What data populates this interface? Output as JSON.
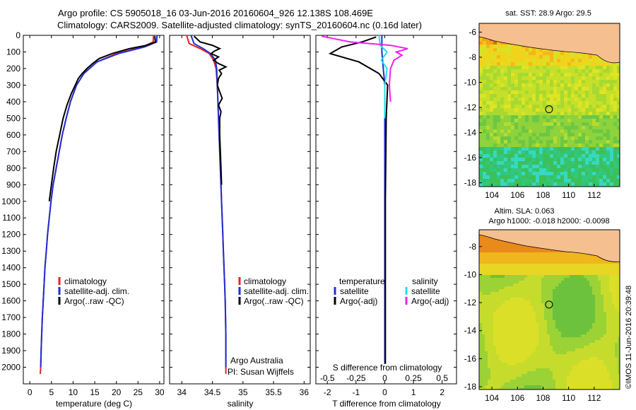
{
  "header": {
    "title_line1": "Argo profile: CS 5905018_16 03-Jun-2016 20160604_926 12.138S 108.469E",
    "title_line2": "Climatology: CARS2009. Satellite-adjusted climatology: synTS_20160604.nc (0.16d later)"
  },
  "watermark": "©IMOS 11-Jun-2016 20:39:48",
  "colors": {
    "climatology": "#e8221c",
    "satellite_clim": "#1f2fd6",
    "argo": "#000000",
    "satellite_sal": "#1fe0e6",
    "argo_sal": "#ee22ee",
    "land": "#f5bf8f"
  },
  "chart_data": [
    {
      "id": "temperature",
      "type": "line",
      "xlabel": "temperature (deg C)",
      "ylabel": "",
      "xlim": [
        -1.5,
        31
      ],
      "ylim": [
        2100,
        0
      ],
      "xticks": [
        0,
        5,
        10,
        15,
        20,
        25,
        30
      ],
      "yticks": [
        0,
        100,
        200,
        300,
        400,
        500,
        600,
        700,
        800,
        900,
        1000,
        1100,
        1200,
        1300,
        1400,
        1500,
        1600,
        1700,
        1800,
        1900,
        2000
      ],
      "legend": [
        "climatology",
        "satellite-adj. clim.",
        "Argo(..raw -QC)"
      ],
      "series": [
        {
          "name": "climatology",
          "color": "#e8221c",
          "x": [
            28.6,
            28.5,
            26,
            20,
            15.5,
            12.5,
            10.8,
            9.4,
            8.4,
            7.5,
            6.8,
            6.1,
            5.4,
            4.9,
            4.5,
            4.1,
            3.8,
            3.5,
            3.3,
            3.1,
            2.9,
            2.75,
            2.62,
            2.52,
            2.42
          ],
          "y": [
            0,
            40,
            70,
            110,
            160,
            230,
            300,
            400,
            500,
            600,
            700,
            800,
            900,
            1000,
            1100,
            1200,
            1300,
            1400,
            1500,
            1600,
            1700,
            1800,
            1900,
            2000,
            2040
          ]
        },
        {
          "name": "satellite-adj. clim.",
          "color": "#1f2fd6",
          "x": [
            29.4,
            29.3,
            26.5,
            20.5,
            15.5,
            12.5,
            10.8,
            9.4,
            8.4,
            7.5,
            6.8,
            6.1,
            5.4,
            4.9,
            4.5,
            4.1,
            3.8,
            3.5,
            3.3,
            3.1,
            2.9,
            2.75,
            2.62,
            2.52
          ],
          "y": [
            0,
            40,
            70,
            110,
            160,
            230,
            300,
            400,
            500,
            600,
            700,
            800,
            900,
            1000,
            1100,
            1200,
            1300,
            1400,
            1500,
            1600,
            1700,
            1800,
            1900,
            2000
          ]
        },
        {
          "name": "Argo(..raw -QC)",
          "color": "#000000",
          "x": [
            28.9,
            29,
            27,
            23,
            19,
            16,
            14.5,
            13.2,
            12.1,
            11.2,
            10.5,
            9.6,
            8.6,
            7.7,
            6.9,
            6.1,
            5.5,
            5.0,
            4.5
          ],
          "y": [
            5,
            40,
            60,
            80,
            110,
            140,
            170,
            200,
            230,
            260,
            300,
            350,
            420,
            500,
            600,
            700,
            800,
            900,
            1000
          ]
        }
      ]
    },
    {
      "id": "salinity",
      "type": "line",
      "xlabel": "salinity",
      "ylabel": "",
      "xlim": [
        33.8,
        36.1
      ],
      "ylim": [
        2100,
        0
      ],
      "xticks": [
        34,
        34.5,
        35,
        35.5,
        36
      ],
      "legend": [
        "climatology",
        "satellite-adj. clim.",
        "Argo(..raw -QC)"
      ],
      "annotation": [
        "Argo Australia",
        "PI: Susan Wijffels"
      ],
      "series": [
        {
          "name": "climatology",
          "color": "#e8221c",
          "x": [
            34.08,
            34.12,
            34.3,
            34.45,
            34.52,
            34.56,
            34.58,
            34.59,
            34.6,
            34.61,
            34.62,
            34.63,
            34.64,
            34.65,
            34.66,
            34.67,
            34.68,
            34.69,
            34.7,
            34.71,
            34.72,
            34.72,
            34.72
          ],
          "y": [
            0,
            50,
            80,
            110,
            150,
            200,
            300,
            400,
            500,
            600,
            700,
            800,
            900,
            1000,
            1100,
            1200,
            1300,
            1400,
            1500,
            1600,
            1800,
            2000,
            2040
          ]
        },
        {
          "name": "satellite-adj. clim.",
          "color": "#1f2fd6",
          "x": [
            34.15,
            34.2,
            34.35,
            34.47,
            34.55,
            34.57,
            34.58,
            34.59,
            34.6,
            34.61,
            34.62,
            34.63,
            34.64,
            34.65,
            34.66,
            34.67,
            34.68,
            34.69,
            34.7,
            34.71,
            34.72,
            34.72
          ],
          "y": [
            0,
            50,
            80,
            110,
            150,
            200,
            300,
            400,
            500,
            600,
            700,
            800,
            900,
            1000,
            1100,
            1200,
            1300,
            1400,
            1500,
            1600,
            1800,
            2000
          ]
        },
        {
          "name": "Argo(..raw -QC)",
          "color": "#000000",
          "x": [
            34.2,
            34.3,
            34.5,
            34.62,
            34.53,
            34.48,
            34.6,
            34.52,
            34.6,
            34.72,
            34.61,
            34.65,
            34.6,
            34.58,
            34.62,
            34.66,
            34.6,
            34.64,
            34.62,
            34.62,
            34.63,
            34.64,
            34.65
          ],
          "y": [
            5,
            40,
            60,
            80,
            95,
            110,
            130,
            150,
            170,
            190,
            210,
            230,
            260,
            300,
            340,
            380,
            420,
            460,
            500,
            600,
            700,
            800,
            900
          ]
        }
      ]
    },
    {
      "id": "differences",
      "type": "line",
      "xlabel": "T difference from climatology",
      "x2label": "S difference from climatology",
      "xlim": [
        -2.4,
        2.5
      ],
      "x2lim": [
        -0.6,
        0.625
      ],
      "ylim": [
        2100,
        0
      ],
      "xticks": [
        -2,
        -1,
        0,
        1,
        2
      ],
      "x2ticks": [
        "-0.5",
        "-0.25",
        "0",
        "0.25",
        "0.5"
      ],
      "legend": {
        "temperature_header": "temperature",
        "salinity_header": "salinity",
        "temperature": [
          "satellite",
          "Argo(-adj)"
        ],
        "salinity": [
          "satellite",
          "Argo(-adj)"
        ]
      },
      "series": [
        {
          "name": "satellite",
          "color": "#1f2fd6",
          "x": [
            -0.1,
            -0.1,
            -0.05,
            0,
            0,
            0,
            0,
            0
          ],
          "y": [
            0,
            100,
            200,
            300,
            500,
            1000,
            1500,
            1980
          ]
        },
        {
          "name": "Argo(-adj)",
          "color": "#000000",
          "x": [
            -0.3,
            -0.8,
            -1.5,
            -1.9,
            -0.9,
            -0.2,
            0.1,
            0.05,
            0.02,
            0.02
          ],
          "y": [
            10,
            40,
            70,
            110,
            160,
            230,
            300,
            500,
            1000,
            1980
          ]
        },
        {
          "name": "satellite",
          "color": "#1fe0e6",
          "x": [
            -0.05,
            -0.04,
            0.02,
            -0.03,
            0.02,
            0,
            0,
            0
          ],
          "y": [
            0,
            60,
            100,
            150,
            200,
            300,
            400,
            500
          ]
        },
        {
          "name": "Argo(-adj)",
          "color": "#ee22ee",
          "x": [
            -0.55,
            -0.3,
            0.05,
            0.2,
            0.1,
            0.15,
            0.08,
            0.05,
            0.04,
            0.05
          ],
          "y": [
            5,
            40,
            60,
            80,
            100,
            120,
            150,
            200,
            300,
            400
          ]
        }
      ]
    },
    {
      "id": "sst_map",
      "type": "heatmap",
      "title": "sat. SST: 28.9 Argo: 29.5",
      "xticks": [
        104,
        106,
        108,
        110,
        112
      ],
      "yticks": [
        -6,
        -8,
        -10,
        -12,
        -14,
        -16,
        -18
      ],
      "xlim": [
        103,
        114
      ],
      "ylim": [
        -18.3,
        -5.3
      ],
      "marker": {
        "lon": 108.469,
        "lat": -12.138
      }
    },
    {
      "id": "sla_map",
      "type": "heatmap",
      "title": "Altim. SLA: 0.063",
      "subtitle": "Argo h1000: -0.018 h2000: -0.0098",
      "xticks": [
        104,
        106,
        108,
        110,
        112
      ],
      "yticks": [
        -8,
        -10,
        -12,
        -14,
        -16,
        -18
      ],
      "xlim": [
        103,
        114
      ],
      "ylim": [
        -18.2,
        -6.8
      ],
      "marker": {
        "lon": 108.469,
        "lat": -12.138
      }
    }
  ]
}
